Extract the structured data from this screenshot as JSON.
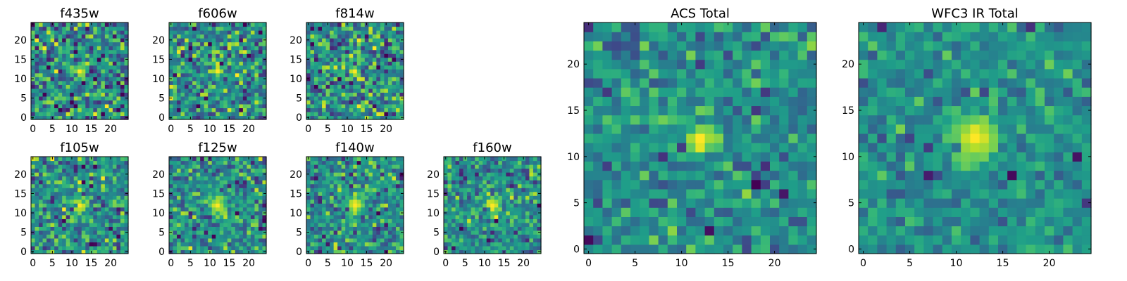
{
  "figure": {
    "background": "#ffffff",
    "colormap": "viridis"
  },
  "chart_data": [
    {
      "type": "heatmap",
      "title": "f435w",
      "grid_size": 25,
      "xlim": [
        0,
        25
      ],
      "ylim": [
        0,
        25
      ],
      "xticks": [
        0,
        5,
        10,
        15,
        20
      ],
      "yticks": [
        0,
        5,
        10,
        15,
        20
      ],
      "peak": [
        12,
        12
      ],
      "peak_sigma": 1.0,
      "noise_level": 0.6
    },
    {
      "type": "heatmap",
      "title": "f606w",
      "grid_size": 25,
      "xlim": [
        0,
        25
      ],
      "ylim": [
        0,
        25
      ],
      "xticks": [
        0,
        5,
        10,
        15,
        20
      ],
      "yticks": [
        0,
        5,
        10,
        15,
        20
      ],
      "peak": [
        12,
        12
      ],
      "peak_sigma": 1.0,
      "noise_level": 0.55
    },
    {
      "type": "heatmap",
      "title": "f814w",
      "grid_size": 25,
      "xlim": [
        0,
        25
      ],
      "ylim": [
        0,
        25
      ],
      "xticks": [
        0,
        5,
        10,
        15,
        20
      ],
      "yticks": [
        0,
        5,
        10,
        15,
        20
      ],
      "peak": [
        12,
        12
      ],
      "peak_sigma": 1.0,
      "noise_level": 0.55
    },
    {
      "type": "heatmap",
      "title": "f105w",
      "grid_size": 25,
      "xlim": [
        0,
        25
      ],
      "ylim": [
        0,
        25
      ],
      "xticks": [
        0,
        5,
        10,
        15,
        20
      ],
      "yticks": [
        0,
        5,
        10,
        15,
        20
      ],
      "peak": [
        12,
        12
      ],
      "peak_sigma": 1.4,
      "noise_level": 0.5
    },
    {
      "type": "heatmap",
      "title": "f125w",
      "grid_size": 25,
      "xlim": [
        0,
        25
      ],
      "ylim": [
        0,
        25
      ],
      "xticks": [
        0,
        5,
        10,
        15,
        20
      ],
      "yticks": [
        0,
        5,
        10,
        15,
        20
      ],
      "peak": [
        12,
        12
      ],
      "peak_sigma": 1.5,
      "noise_level": 0.5
    },
    {
      "type": "heatmap",
      "title": "f140w",
      "grid_size": 25,
      "xlim": [
        0,
        25
      ],
      "ylim": [
        0,
        25
      ],
      "xticks": [
        0,
        5,
        10,
        15,
        20
      ],
      "yticks": [
        0,
        5,
        10,
        15,
        20
      ],
      "peak": [
        12,
        12
      ],
      "peak_sigma": 1.6,
      "noise_level": 0.45
    },
    {
      "type": "heatmap",
      "title": "f160w",
      "grid_size": 25,
      "xlim": [
        0,
        25
      ],
      "ylim": [
        0,
        25
      ],
      "xticks": [
        0,
        5,
        10,
        15,
        20
      ],
      "yticks": [
        0,
        5,
        10,
        15,
        20
      ],
      "peak": [
        12,
        12
      ],
      "peak_sigma": 1.6,
      "noise_level": 0.45
    },
    {
      "type": "heatmap",
      "title": "ACS Total",
      "grid_size": 25,
      "xlim": [
        0,
        25
      ],
      "ylim": [
        0,
        25
      ],
      "xticks": [
        0,
        5,
        10,
        15,
        20
      ],
      "yticks": [
        0,
        5,
        10,
        15,
        20
      ],
      "peak": [
        12,
        12
      ],
      "peak_sigma": 1.1,
      "noise_level": 0.35
    },
    {
      "type": "heatmap",
      "title": "WFC3 IR Total",
      "grid_size": 25,
      "xlim": [
        0,
        25
      ],
      "ylim": [
        0,
        25
      ],
      "xticks": [
        0,
        5,
        10,
        15,
        20
      ],
      "yticks": [
        0,
        5,
        10,
        15,
        20
      ],
      "peak": [
        12,
        12
      ],
      "peak_sigma": 1.7,
      "noise_level": 0.3
    }
  ]
}
